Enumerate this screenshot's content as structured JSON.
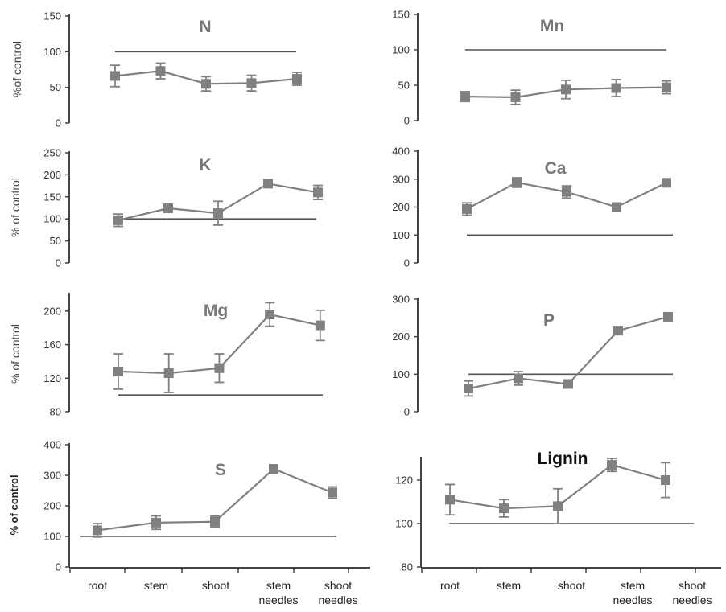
{
  "figure": {
    "categories": [
      "root",
      "stem",
      "shoot",
      "stem needles",
      "shoot needles"
    ],
    "colors": {
      "series": "#808080",
      "reference": "#555555",
      "axis": "#444444"
    }
  },
  "chart_data": [
    {
      "type": "line",
      "title": "N",
      "ylabel": "%of control",
      "ylim": [
        0,
        150
      ],
      "yticks": [
        0,
        50,
        100,
        150
      ],
      "reference_value": 100,
      "categories": [
        "root",
        "stem",
        "shoot",
        "stem needles",
        "shoot needles"
      ],
      "values": [
        66,
        73,
        55,
        56,
        62
      ],
      "errors": [
        15,
        11,
        10,
        11,
        9
      ]
    },
    {
      "type": "line",
      "title": "Mn",
      "ylabel": "",
      "ylim": [
        0,
        150
      ],
      "yticks": [
        0,
        50,
        100,
        150
      ],
      "reference_value": 100,
      "categories": [
        "root",
        "stem",
        "shoot",
        "stem needles",
        "shoot needles"
      ],
      "values": [
        34,
        33,
        44,
        46,
        47
      ],
      "errors": [
        7,
        10,
        13,
        12,
        9
      ]
    },
    {
      "type": "line",
      "title": "K",
      "ylabel": "% of control",
      "ylim": [
        0,
        250
      ],
      "yticks": [
        0,
        50,
        100,
        150,
        200,
        250
      ],
      "reference_value": 100,
      "categories": [
        "root",
        "stem",
        "shoot",
        "stem needles",
        "shoot needles"
      ],
      "values": [
        97,
        124,
        113,
        180,
        160
      ],
      "errors": [
        14,
        9,
        27,
        6,
        16
      ]
    },
    {
      "type": "line",
      "title": "Ca",
      "ylabel": "",
      "ylim": [
        0,
        400
      ],
      "yticks": [
        0,
        100,
        200,
        300,
        400
      ],
      "reference_value": 100,
      "categories": [
        "root",
        "stem",
        "shoot",
        "stem needles",
        "shoot needles"
      ],
      "values": [
        193,
        288,
        254,
        200,
        287
      ],
      "errors": [
        22,
        17,
        22,
        9,
        9
      ]
    },
    {
      "type": "line",
      "title": "Mg",
      "ylabel": "% of control",
      "ylim": [
        80,
        220
      ],
      "yticks": [
        80,
        120,
        160,
        200
      ],
      "reference_value": 100,
      "categories": [
        "root",
        "stem",
        "shoot",
        "stem needles",
        "shoot needles"
      ],
      "values": [
        128,
        126,
        132,
        196,
        183
      ],
      "errors": [
        21,
        23,
        17,
        14,
        18
      ]
    },
    {
      "type": "line",
      "title": "P",
      "ylabel": "",
      "ylim": [
        0,
        300
      ],
      "yticks": [
        0,
        100,
        200,
        300
      ],
      "reference_value": 100,
      "categories": [
        "root",
        "stem",
        "shoot",
        "stem needles",
        "shoot needles"
      ],
      "values": [
        62,
        89,
        74,
        216,
        253
      ],
      "errors": [
        20,
        18,
        7,
        9,
        7
      ]
    },
    {
      "type": "line",
      "title": "S",
      "ylabel": "% of control",
      "ylim": [
        0,
        400
      ],
      "yticks": [
        0,
        100,
        200,
        300,
        400
      ],
      "reference_value": 100,
      "categories": [
        "root",
        "stem",
        "shoot",
        "stem needles",
        "shoot needles"
      ],
      "values": [
        120,
        145,
        148,
        321,
        243
      ],
      "errors": [
        22,
        22,
        18,
        10,
        19
      ]
    },
    {
      "type": "line",
      "title": "Lignin",
      "ylabel": "",
      "ylim": [
        80,
        130
      ],
      "yticks": [
        80,
        100,
        120
      ],
      "reference_value": 100,
      "categories": [
        "root",
        "stem",
        "shoot",
        "stem needles",
        "shoot needles"
      ],
      "values": [
        111,
        107,
        108,
        127,
        120
      ],
      "errors": [
        7,
        4,
        8,
        3,
        8
      ]
    }
  ]
}
